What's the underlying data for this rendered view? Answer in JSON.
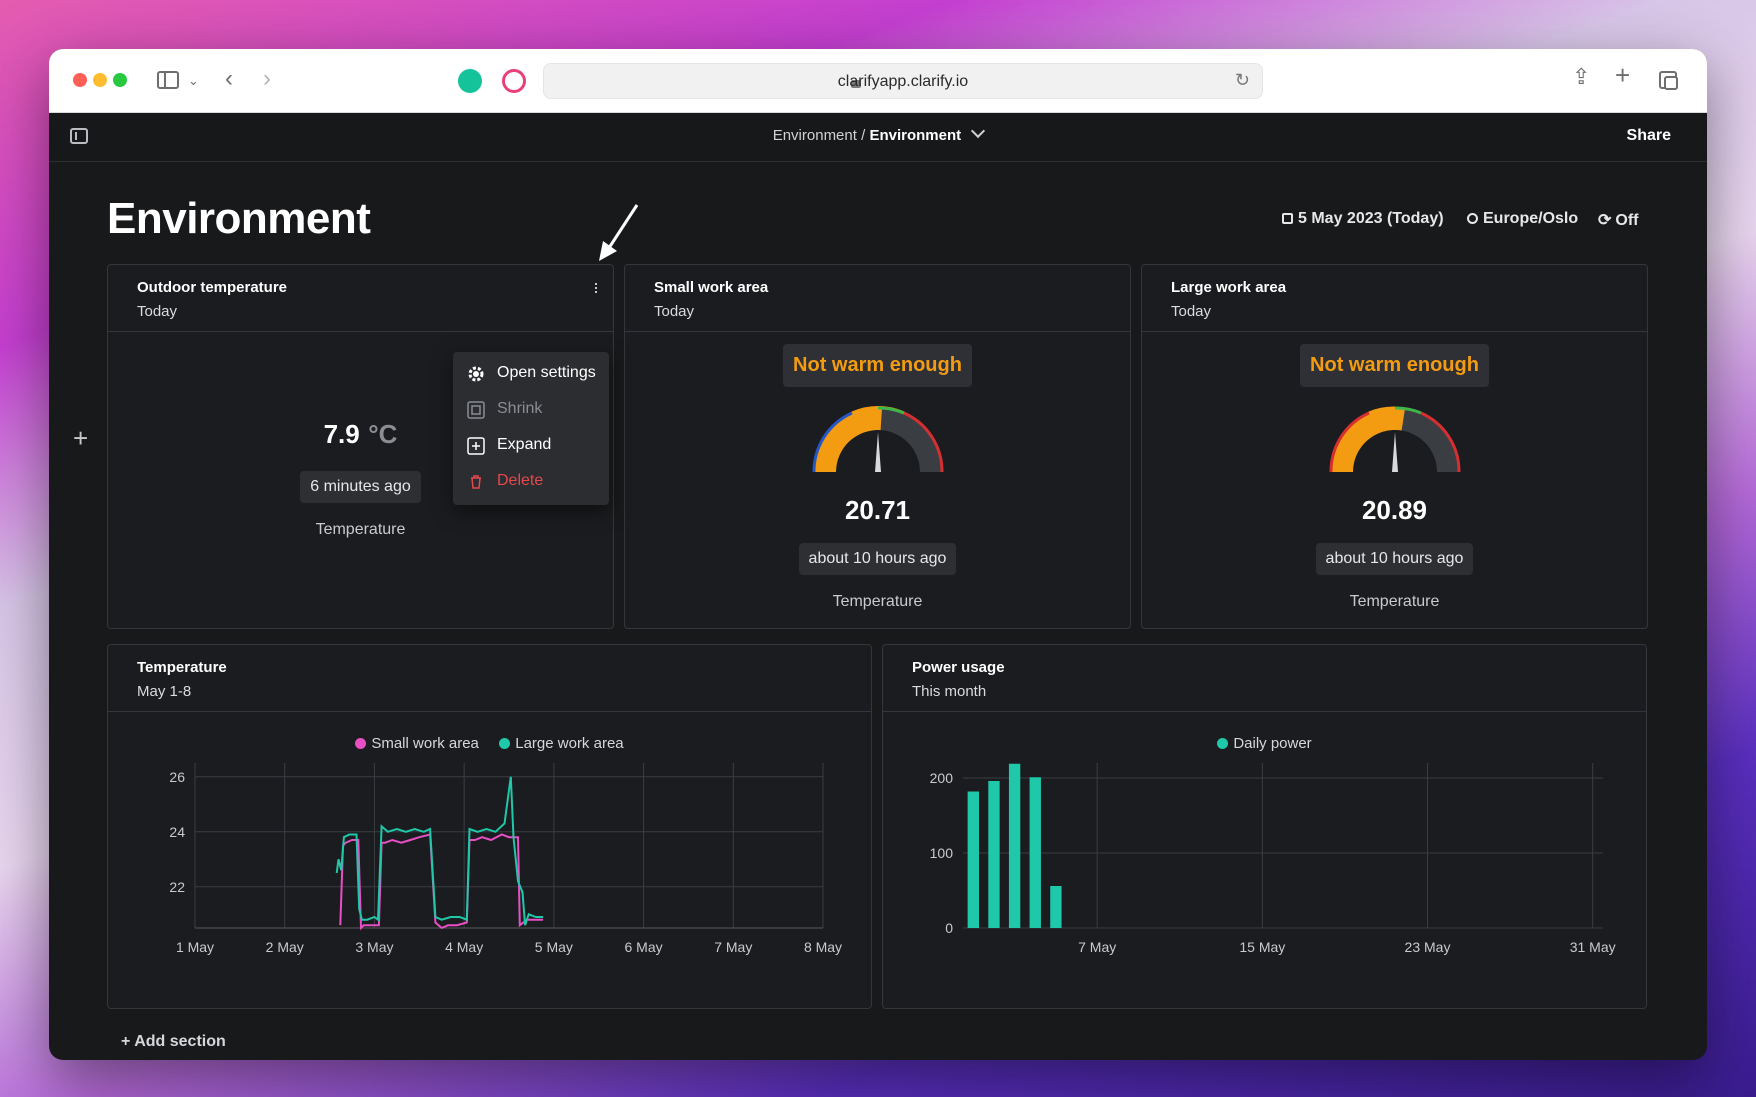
{
  "browser": {
    "url": "clarifyapp.clarify.io"
  },
  "appbar": {
    "breadcrumb_parent": "Environment",
    "breadcrumb_sep": " / ",
    "breadcrumb_current": "Environment",
    "share_label": "Share"
  },
  "page": {
    "title": "Environment",
    "date_label": "5 May 2023 (Today)",
    "timezone_label": "Europe/Oslo",
    "refresh_label": "Off",
    "add_section_label": "+ Add section"
  },
  "cards": {
    "outdoor": {
      "title": "Outdoor temperature",
      "subtitle": "Today",
      "value": "7.9",
      "unit": "°C",
      "time": "6 minutes ago",
      "label": "Temperature"
    },
    "small": {
      "title": "Small work area",
      "subtitle": "Today",
      "status": "Not warm enough",
      "value": "20.71",
      "gauge_level": 0.52,
      "time": "about 10 hours ago",
      "label": "Temperature"
    },
    "large": {
      "title": "Large work area",
      "subtitle": "Today",
      "status": "Not warm enough",
      "value": "20.89",
      "gauge_level": 0.55,
      "time": "about 10 hours ago",
      "label": "Temperature"
    }
  },
  "menu": {
    "items": [
      {
        "label": "Open settings",
        "icon": "gear-icon",
        "color": "#ffffff"
      },
      {
        "label": "Shrink",
        "icon": "shrink-icon",
        "color": "#8a8d92"
      },
      {
        "label": "Expand",
        "icon": "expand-icon",
        "color": "#ffffff"
      },
      {
        "label": "Delete",
        "icon": "trash-icon",
        "color": "#e5484d"
      }
    ]
  },
  "temperature_card": {
    "title": "Temperature",
    "subtitle": "May 1-8"
  },
  "power_card": {
    "title": "Power usage",
    "subtitle": "This month"
  },
  "chart_data": [
    {
      "type": "line",
      "series": [
        {
          "name": "Small work area",
          "color": "#e84fc4",
          "points": [
            [
              2.62,
              20.6
            ],
            [
              2.65,
              23.5
            ],
            [
              2.68,
              23.6
            ],
            [
              2.75,
              23.7
            ],
            [
              2.82,
              23.7
            ],
            [
              2.85,
              20.5
            ],
            [
              2.88,
              20.6
            ],
            [
              2.95,
              20.6
            ],
            [
              3.0,
              20.6
            ],
            [
              3.05,
              20.6
            ],
            [
              3.08,
              23.6
            ],
            [
              3.12,
              23.6
            ],
            [
              3.2,
              23.7
            ],
            [
              3.3,
              23.6
            ],
            [
              3.4,
              23.7
            ],
            [
              3.5,
              23.8
            ],
            [
              3.62,
              23.9
            ],
            [
              3.68,
              20.7
            ],
            [
              3.75,
              20.5
            ],
            [
              3.82,
              20.6
            ],
            [
              3.92,
              20.6
            ],
            [
              4.03,
              20.7
            ],
            [
              4.06,
              23.7
            ],
            [
              4.12,
              23.7
            ],
            [
              4.2,
              23.8
            ],
            [
              4.3,
              23.7
            ],
            [
              4.42,
              23.9
            ],
            [
              4.5,
              23.8
            ],
            [
              4.6,
              23.8
            ],
            [
              4.62,
              20.6
            ],
            [
              4.7,
              20.8
            ],
            [
              4.8,
              20.8
            ],
            [
              4.88,
              20.8
            ]
          ]
        },
        {
          "name": "Large work area",
          "color": "#1fc8a8",
          "points": [
            [
              2.58,
              22.5
            ],
            [
              2.6,
              23.0
            ],
            [
              2.63,
              22.6
            ],
            [
              2.66,
              23.8
            ],
            [
              2.72,
              23.9
            ],
            [
              2.8,
              23.9
            ],
            [
              2.83,
              21.2
            ],
            [
              2.86,
              20.8
            ],
            [
              2.92,
              20.8
            ],
            [
              3.0,
              20.9
            ],
            [
              3.04,
              20.8
            ],
            [
              3.08,
              24.2
            ],
            [
              3.15,
              24.0
            ],
            [
              3.25,
              24.1
            ],
            [
              3.35,
              24.0
            ],
            [
              3.45,
              24.1
            ],
            [
              3.55,
              24.0
            ],
            [
              3.62,
              24.1
            ],
            [
              3.68,
              20.9
            ],
            [
              3.75,
              20.8
            ],
            [
              3.85,
              20.9
            ],
            [
              3.95,
              20.9
            ],
            [
              4.03,
              20.8
            ],
            [
              4.06,
              24.1
            ],
            [
              4.15,
              24.0
            ],
            [
              4.25,
              24.1
            ],
            [
              4.35,
              24.0
            ],
            [
              4.45,
              24.3
            ],
            [
              4.52,
              26.0
            ],
            [
              4.55,
              23.8
            ],
            [
              4.6,
              22.2
            ],
            [
              4.65,
              21.8
            ],
            [
              4.68,
              20.6
            ],
            [
              4.72,
              21.0
            ],
            [
              4.8,
              20.9
            ],
            [
              4.88,
              20.9
            ]
          ]
        }
      ],
      "xlim": [
        1,
        8
      ],
      "xticks": [
        "1 May",
        "2 May",
        "3 May",
        "4 May",
        "5 May",
        "6 May",
        "7 May",
        "8 May"
      ],
      "ylim": [
        20.5,
        26.5
      ],
      "yticks": [
        22,
        24,
        26
      ],
      "legend": "top-center",
      "grid": true
    },
    {
      "type": "bar",
      "series": [
        {
          "name": "Daily power",
          "color": "#1fc8a8",
          "x": [
            1,
            2,
            3,
            4,
            5
          ],
          "values": [
            182,
            196,
            219,
            201,
            56
          ]
        }
      ],
      "xlim": [
        0.5,
        31.5
      ],
      "xticks": [
        {
          "day": 7,
          "label": "7 May"
        },
        {
          "day": 15,
          "label": "15 May"
        },
        {
          "day": 23,
          "label": "23 May"
        },
        {
          "day": 31,
          "label": "31 May"
        }
      ],
      "ylim": [
        0,
        220
      ],
      "yticks": [
        0,
        100,
        200
      ],
      "legend": "top-center",
      "grid": true
    }
  ]
}
